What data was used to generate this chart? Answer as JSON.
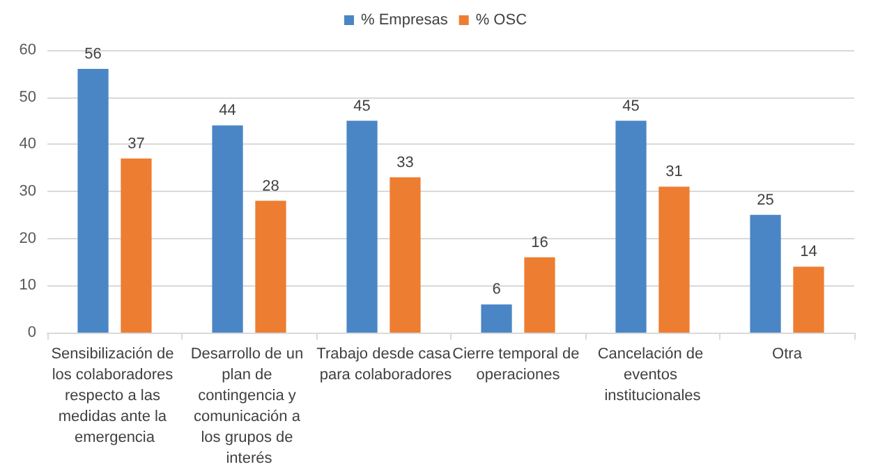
{
  "chart_data": {
    "type": "bar",
    "categories": [
      "Sensibilización de los colaboradores respecto a las medidas ante la emergencia",
      "Desarrollo de un plan de contingencia y comunicación a los grupos de interés",
      "Trabajo desde casa para colaboradores",
      "Cierre temporal de operaciones",
      "Cancelación de eventos institucionales",
      "Otra"
    ],
    "series": [
      {
        "name": "% Empresas",
        "color": "#4a86c5",
        "values": [
          56,
          44,
          45,
          6,
          45,
          25
        ]
      },
      {
        "name": "% OSC",
        "color": "#ed7d31",
        "values": [
          37,
          28,
          33,
          16,
          31,
          14
        ]
      }
    ],
    "ylim": [
      0,
      60
    ],
    "yticks": [
      0,
      10,
      20,
      30,
      40,
      50,
      60
    ],
    "grid": "y",
    "legend": "top",
    "data_labels": true
  }
}
